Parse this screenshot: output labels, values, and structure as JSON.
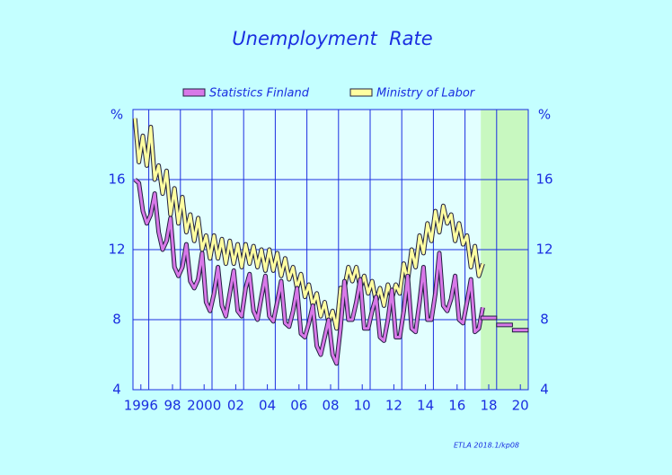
{
  "chart_data": {
    "type": "line",
    "title": "Unemployment  Rate",
    "y_unit": "%",
    "footnote": "ETLA 2018.1/kp08",
    "xlim": [
      1996,
      2021
    ],
    "xticks": [
      {
        "value": 1996.5,
        "label": "1996"
      },
      {
        "value": 1998.5,
        "label": "98"
      },
      {
        "value": 2000.5,
        "label": "2000"
      },
      {
        "value": 2002.5,
        "label": "02"
      },
      {
        "value": 2004.5,
        "label": "04"
      },
      {
        "value": 2006.5,
        "label": "06"
      },
      {
        "value": 2008.5,
        "label": "08"
      },
      {
        "value": 2010.5,
        "label": "10"
      },
      {
        "value": 2012.5,
        "label": "12"
      },
      {
        "value": 2014.5,
        "label": "14"
      },
      {
        "value": 2016.5,
        "label": "16"
      },
      {
        "value": 2018.5,
        "label": "18"
      },
      {
        "value": 2020.5,
        "label": "20"
      }
    ],
    "xgrid": [
      1997,
      1999,
      2001,
      2003,
      2005,
      2007,
      2009,
      2011,
      2013,
      2015,
      2017,
      2019
    ],
    "ylim": [
      4,
      20
    ],
    "yticks": [
      4,
      8,
      12,
      16
    ],
    "grid": true,
    "forecast_from": 2018,
    "forecast_color": "#c8f8c0",
    "x": [
      1996.125,
      1996.375,
      1996.625,
      1996.875,
      1997.125,
      1997.375,
      1997.625,
      1997.875,
      1998.125,
      1998.375,
      1998.625,
      1998.875,
      1999.125,
      1999.375,
      1999.625,
      1999.875,
      2000.125,
      2000.375,
      2000.625,
      2000.875,
      2001.125,
      2001.375,
      2001.625,
      2001.875,
      2002.125,
      2002.375,
      2002.625,
      2002.875,
      2003.125,
      2003.375,
      2003.625,
      2003.875,
      2004.125,
      2004.375,
      2004.625,
      2004.875,
      2005.125,
      2005.375,
      2005.625,
      2005.875,
      2006.125,
      2006.375,
      2006.625,
      2006.875,
      2007.125,
      2007.375,
      2007.625,
      2007.875,
      2008.125,
      2008.375,
      2008.625,
      2008.875,
      2009.125,
      2009.375,
      2009.625,
      2009.875,
      2010.125,
      2010.375,
      2010.625,
      2010.875,
      2011.125,
      2011.375,
      2011.625,
      2011.875,
      2012.125,
      2012.375,
      2012.625,
      2012.875,
      2013.125,
      2013.375,
      2013.625,
      2013.875,
      2014.125,
      2014.375,
      2014.625,
      2014.875,
      2015.125,
      2015.375,
      2015.625,
      2015.875,
      2016.125,
      2016.375,
      2016.625,
      2016.875,
      2017.125,
      2017.375,
      2017.625,
      2017.875,
      2018.125
    ],
    "series": [
      {
        "name": "Statistics Finland",
        "color": "#d878e8",
        "values": [
          16.0,
          15.8,
          14.2,
          13.5,
          14.0,
          15.2,
          13.0,
          12.0,
          12.5,
          13.8,
          11.0,
          10.5,
          11.0,
          12.3,
          10.2,
          9.8,
          10.3,
          11.8,
          9.0,
          8.5,
          9.5,
          11.0,
          8.8,
          8.2,
          9.5,
          10.8,
          8.5,
          8.2,
          9.8,
          10.6,
          8.5,
          8.0,
          9.3,
          10.5,
          8.2,
          7.9,
          9.0,
          10.2,
          7.8,
          7.6,
          8.5,
          9.8,
          7.2,
          7.0,
          7.8,
          8.8,
          6.5,
          6.0,
          7.0,
          8.0,
          6.0,
          5.5,
          7.5,
          10.2,
          8.0,
          8.0,
          9.0,
          10.3,
          7.5,
          7.5,
          8.5,
          9.3,
          7.0,
          6.8,
          8.0,
          9.7,
          7.0,
          7.0,
          8.5,
          10.5,
          7.5,
          7.3,
          9.0,
          11.0,
          8.0,
          8.0,
          9.5,
          11.8,
          8.8,
          8.5,
          9.2,
          10.5,
          8.0,
          7.8,
          9.0,
          10.3,
          7.3,
          7.5,
          8.7
        ],
        "forecast": {
          "x": [
            2018,
            2019,
            2020
          ],
          "values": [
            8.1,
            7.7,
            7.4
          ]
        }
      },
      {
        "name": "Ministry of Labor",
        "color": "#ffffa0",
        "values": [
          19.5,
          17.0,
          18.5,
          16.8,
          19.0,
          16.0,
          16.8,
          15.2,
          16.5,
          14.0,
          15.5,
          13.5,
          15.0,
          13.0,
          14.0,
          12.5,
          13.8,
          12.0,
          12.8,
          11.5,
          12.8,
          11.5,
          12.6,
          11.2,
          12.5,
          11.2,
          12.3,
          11.0,
          12.3,
          11.2,
          12.2,
          11.0,
          12.0,
          10.8,
          12.0,
          10.8,
          11.8,
          10.5,
          11.5,
          10.3,
          11.0,
          9.8,
          10.6,
          9.3,
          10.0,
          8.8,
          9.5,
          8.2,
          9.0,
          7.8,
          8.5,
          7.5,
          9.8,
          9.8,
          11.0,
          10.2,
          11.0,
          9.8,
          10.5,
          9.5,
          10.2,
          9.0,
          9.8,
          8.8,
          10.0,
          9.2,
          10.0,
          9.5,
          11.2,
          10.2,
          12.0,
          11.0,
          12.8,
          11.8,
          13.5,
          12.5,
          14.2,
          13.0,
          14.5,
          13.5,
          14.0,
          12.5,
          13.5,
          12.3,
          12.8,
          11.0,
          12.2,
          10.5,
          11.2
        ]
      }
    ]
  }
}
